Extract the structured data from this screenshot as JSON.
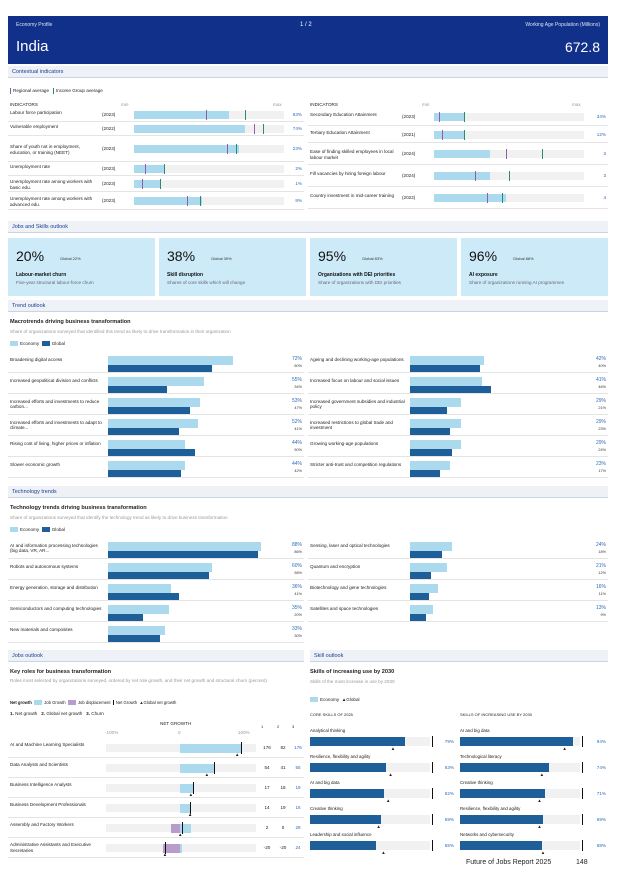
{
  "header": {
    "profile_label": "Economy Profile",
    "page_indicator": "1 / 2",
    "wap_label": "Working Age Population (Millions)",
    "country": "India",
    "wap_value": "672.8"
  },
  "context": {
    "section_title": "Contextual indicators",
    "legend_regional": "Regional average",
    "legend_income": "Income Group average",
    "col_header": "INDICATORS",
    "min_label": "min",
    "max_label": "max",
    "left": [
      {
        "label": "Labour force participation",
        "year": "(2023)",
        "value": "63%",
        "fill": 0.63,
        "p": 0.48,
        "g": 0.74
      },
      {
        "label": "Vulnerable employment",
        "year": "(2022)",
        "value": "74%",
        "fill": 0.74,
        "p": 0.8,
        "g": 0.86
      },
      {
        "label": "Share of youth not in employment, education, or training (NEET)",
        "year": "(2023)",
        "value": "23%",
        "fill": 0.7,
        "p": 0.62,
        "g": 0.68
      },
      {
        "label": "Unemployment rate",
        "year": "(2023)",
        "value": "2%",
        "fill": 0.2,
        "p": 0.07,
        "g": 0.2
      },
      {
        "label": "Unemployment rate among workers with basic edu.",
        "year": "(2023)",
        "value": "1%",
        "fill": 0.18,
        "p": 0.05,
        "g": 0.17
      },
      {
        "label": "Unemployment rate among workers with advanced edu.",
        "year": "(2023)",
        "value": "8%",
        "fill": 0.45,
        "p": 0.35,
        "g": 0.44
      }
    ],
    "right": [
      {
        "label": "Secondary Education Attainment",
        "year": "(2023)",
        "value": "34%",
        "fill": 0.2,
        "p": 0.03,
        "g": 0.2
      },
      {
        "label": "Tertiary Education Attainment",
        "year": "(2021)",
        "value": "12%",
        "fill": 0.2,
        "p": 0.05,
        "g": 0.2
      },
      {
        "label": "Ease of finding skilled employees in local labour market",
        "year": "(2024)",
        "value": "3",
        "fill": 0.37,
        "p": 0.48,
        "g": 0.72
      },
      {
        "label": "Fill vacancies by hiring foreign labour",
        "year": "(2024)",
        "value": "3",
        "fill": 0.37,
        "p": 0.27,
        "g": 0.5
      },
      {
        "label": "Country investment in mid-career training",
        "year": "(2022)",
        "value": "4",
        "fill": 0.48,
        "p": 0.35,
        "g": 0.45
      }
    ]
  },
  "outlook": {
    "section_title": "Jobs and Skills outlook",
    "cards": [
      {
        "value": "20%",
        "global": "Global 22%",
        "title": "Labour-market churn",
        "subtitle": "Five-year structural labour-force churn"
      },
      {
        "value": "38%",
        "global": "Global 39%",
        "title": "Skill disruption",
        "subtitle": "Shares of core skills which will change"
      },
      {
        "value": "95%",
        "global": "Global 83%",
        "title": "Organizations with DEI priorities",
        "subtitle": "Share of organizations with DEI priorities"
      },
      {
        "value": "96%",
        "global": "Global 88%",
        "title": "AI exposure",
        "subtitle": "Share of organizations running AI programmes"
      }
    ]
  },
  "trends": {
    "section_title": "Trend outlook",
    "title": "Macrotrends driving business transformation",
    "subtitle": "Share of organizations surveyed that identified this trend as likely to drive transformation in their organization",
    "legend_economy": "Economy",
    "legend_global": "Global",
    "left": [
      {
        "label": "Broadening digital access",
        "econ": "72%",
        "glob": "60%",
        "e": 72,
        "g": 60
      },
      {
        "label": "Increased geopolitical division and conflicts",
        "econ": "55%",
        "glob": "34%",
        "e": 55,
        "g": 34
      },
      {
        "label": "Increased efforts and investments to reduce carbon...",
        "econ": "53%",
        "glob": "47%",
        "e": 53,
        "g": 47
      },
      {
        "label": "Increased efforts and investments to adapt to climate...",
        "econ": "52%",
        "glob": "41%",
        "e": 52,
        "g": 41
      },
      {
        "label": "Rising cost of living, higher prices or inflation",
        "econ": "44%",
        "glob": "50%",
        "e": 44,
        "g": 50
      },
      {
        "label": "Slower economic growth",
        "econ": "44%",
        "glob": "42%",
        "e": 44,
        "g": 42
      }
    ],
    "right": [
      {
        "label": "Ageing and declining working-age populations",
        "econ": "42%",
        "glob": "40%",
        "e": 42,
        "g": 40
      },
      {
        "label": "Increased focus on labour and social issues",
        "econ": "41%",
        "glob": "46%",
        "e": 41,
        "g": 46
      },
      {
        "label": "Increased government subsidies and industrial policy",
        "econ": "29%",
        "glob": "21%",
        "e": 29,
        "g": 21
      },
      {
        "label": "Increased restrictions to global trade and investment",
        "econ": "29%",
        "glob": "23%",
        "e": 29,
        "g": 23
      },
      {
        "label": "Growing working-age populations",
        "econ": "29%",
        "glob": "24%",
        "e": 29,
        "g": 24
      },
      {
        "label": "Stricter anti-trust and competition regulations",
        "econ": "23%",
        "glob": "17%",
        "e": 23,
        "g": 17
      }
    ]
  },
  "tech": {
    "section_title": "Technology trends",
    "title": "Technology trends driving business transformation",
    "subtitle": "Share of organizations surveyed that identify the technology trend as likely to drive business transformation",
    "legend_economy": "Economy",
    "legend_global": "Global",
    "left": [
      {
        "label": "AI and information processing technologies (big data, VR, AR...",
        "econ": "88%",
        "glob": "86%",
        "e": 88,
        "g": 86
      },
      {
        "label": "Robots and autonomous systems",
        "econ": "60%",
        "glob": "58%",
        "e": 60,
        "g": 58
      },
      {
        "label": "Energy generation, storage and distribution",
        "econ": "36%",
        "glob": "41%",
        "e": 36,
        "g": 41
      },
      {
        "label": "Semiconductors and computing technologies",
        "econ": "35%",
        "glob": "20%",
        "e": 35,
        "g": 20
      },
      {
        "label": "New materials and composites",
        "econ": "33%",
        "glob": "30%",
        "e": 33,
        "g": 30
      }
    ],
    "right": [
      {
        "label": "Sensing, laser and optical technologies",
        "econ": "24%",
        "glob": "18%",
        "e": 24,
        "g": 18
      },
      {
        "label": "Quantum and encryption",
        "econ": "21%",
        "glob": "12%",
        "e": 21,
        "g": 12
      },
      {
        "label": "Biotechnology and gene technologies",
        "econ": "16%",
        "glob": "11%",
        "e": 16,
        "g": 11
      },
      {
        "label": "Satellites and space technologies",
        "econ": "13%",
        "glob": "9%",
        "e": 13,
        "g": 9
      }
    ]
  },
  "jobs": {
    "section_title": "Jobs outlook",
    "title": "Key roles for business transformation",
    "subtitle": "Roles most selected by organizations surveyed, ordered by net role growth, and their net growth and structural churn (percent)",
    "legend": [
      "Net growth",
      "Job Growth",
      "Job displacement",
      "Net Growth",
      "Global net growth"
    ],
    "key1": "1.",
    "key1_label": "Net growth",
    "key2": "2.",
    "key2_label": "Global net growth",
    "key3": "3.",
    "key3_label": "Churn",
    "axis_title": "NET GROWTH",
    "axis_min": "-100%",
    "axis_zero": "0",
    "axis_max": "100%",
    "col1": "1",
    "col2": "2",
    "col3": "3",
    "rows": [
      {
        "label": "AI and Machine Learning Specialists",
        "c1": "176",
        "c2": "82",
        "c3": "176",
        "growth": 0.8,
        "disp": 0,
        "net": 0.8,
        "glob": 0.75
      },
      {
        "label": "Data Analysts and Scientists",
        "c1": "54",
        "c2": "41",
        "c3": "55",
        "growth": 0.45,
        "disp": 0,
        "net": 0.45,
        "glob": 0.35
      },
      {
        "label": "Business Intelligence Analysts",
        "c1": "17",
        "c2": "18",
        "c3": "19",
        "growth": 0.17,
        "disp": 0,
        "net": 0.17,
        "glob": 0.14
      },
      {
        "label": "Business Development Professionals",
        "c1": "14",
        "c2": "19",
        "c3": "16",
        "growth": 0.13,
        "disp": 0,
        "net": 0.13,
        "glob": 0.13
      },
      {
        "label": "Assembly and Factory Workers",
        "c1": "2",
        "c2": "0",
        "c3": "28",
        "growth": 0.14,
        "disp": 0.12,
        "net": 0.02,
        "glob": 0.0
      },
      {
        "label": "Administrative Assistants and Executive Secretaries",
        "c1": "-20",
        "c2": "-20",
        "c3": "24",
        "growth": 0.02,
        "disp": 0.22,
        "net": -0.2,
        "glob": -0.2
      }
    ]
  },
  "skills": {
    "section_title": "Skill outlook",
    "title": "Skills of increasing use by 2030",
    "subtitle": "Skills of the most increase in use by 2030",
    "legend_economy": "Economy",
    "legend_global": "Global",
    "core_header": "CORE SKILLS OF 2025",
    "increase_header": "SKILLS OF INCREASING USE BY 2030",
    "core": [
      {
        "label": "Analytical thinking",
        "value": "79%",
        "v": 79,
        "g": 69
      },
      {
        "label": "Resilience, flexibility and agility",
        "value": "63%",
        "v": 63,
        "g": 67
      },
      {
        "label": "AI and big data",
        "value": "62%",
        "v": 62,
        "g": 65
      },
      {
        "label": "Creative thinking",
        "value": "59%",
        "v": 59,
        "g": 57
      },
      {
        "label": "Leadership and social influence",
        "value": "55%",
        "v": 55,
        "g": 61
      }
    ],
    "increase": [
      {
        "label": "AI and big data",
        "value": "94%",
        "v": 94,
        "g": 87
      },
      {
        "label": "Technological literacy",
        "value": "74%",
        "v": 74,
        "g": 68
      },
      {
        "label": "Creative thinking",
        "value": "71%",
        "v": 71,
        "g": 66
      },
      {
        "label": "Resilience, flexibility and agility",
        "value": "69%",
        "v": 69,
        "g": 66
      },
      {
        "label": "Networks and cybersecurity",
        "value": "68%",
        "v": 68,
        "g": 69
      }
    ]
  },
  "footer": {
    "report": "Future of Jobs Report 2025",
    "page": "148"
  },
  "colors": {
    "header_bg": "#10308a",
    "economy": "#abd9ee",
    "global": "#1f5f99",
    "regional_marker": "#8d5fa6",
    "income_marker": "#2c8a6f",
    "card_bg": "#cdeaf8",
    "accent_text": "#2c6cb7"
  }
}
